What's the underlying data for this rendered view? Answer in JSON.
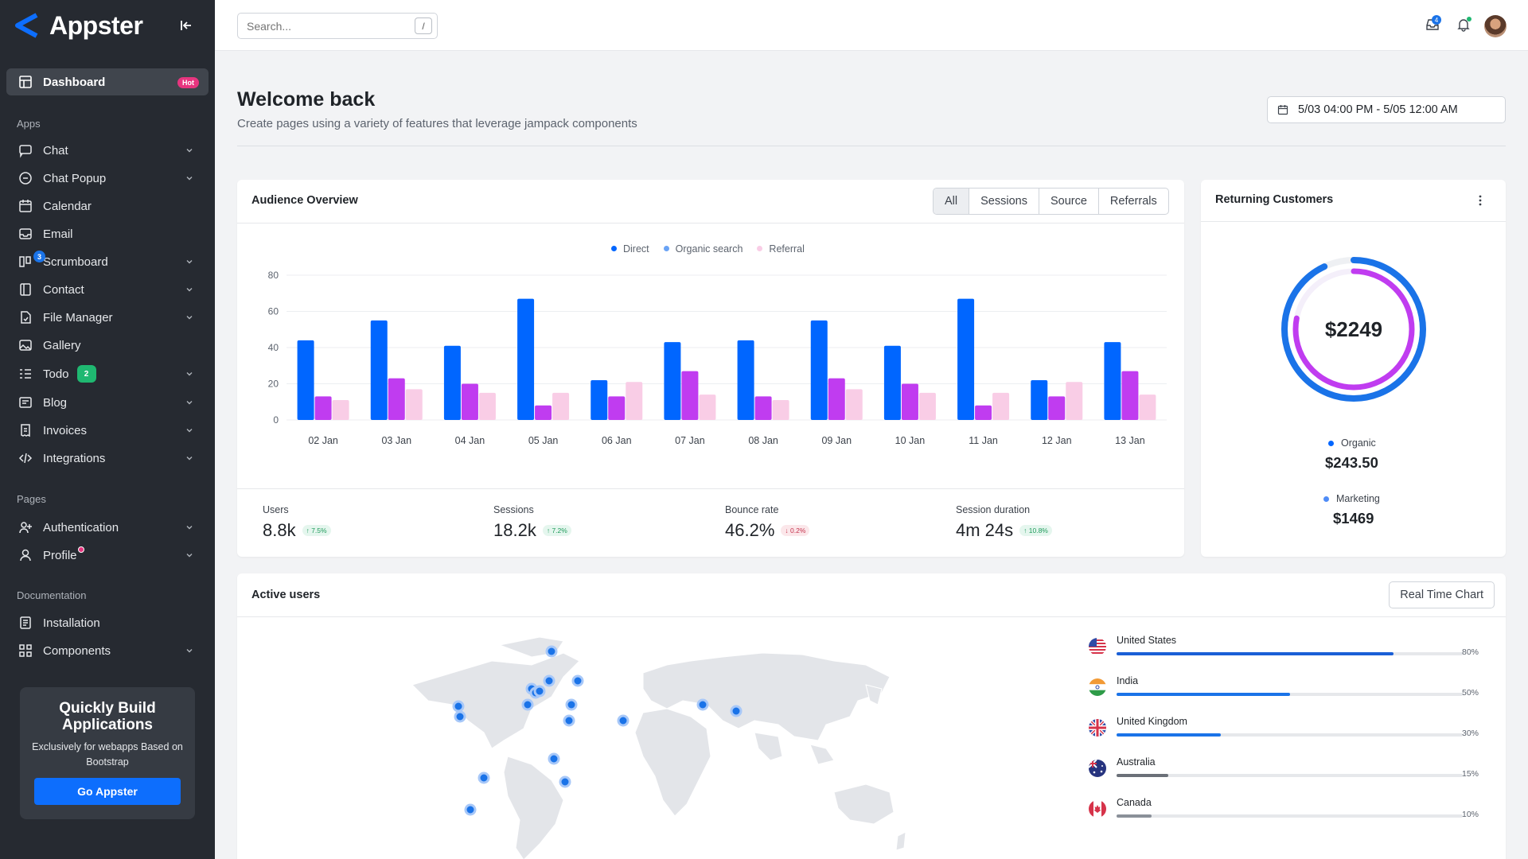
{
  "brand": {
    "name": "Appster"
  },
  "sidebar": {
    "dashboard": {
      "label": "Dashboard",
      "badge": "Hot"
    },
    "apps_title": "Apps",
    "apps": [
      {
        "label": "Chat",
        "icon": "chat-icon"
      },
      {
        "label": "Chat Popup",
        "icon": "chat-popup-icon"
      },
      {
        "label": "Calendar",
        "icon": "calendar-icon"
      },
      {
        "label": "Email",
        "icon": "email-icon"
      },
      {
        "label": "Scrumboard",
        "icon": "scrumboard-icon",
        "badge": "3"
      },
      {
        "label": "Contact",
        "icon": "contact-icon"
      },
      {
        "label": "File Manager",
        "icon": "file-manager-icon"
      },
      {
        "label": "Gallery",
        "icon": "gallery-icon"
      },
      {
        "label": "Todo",
        "icon": "todo-icon",
        "badge": "2"
      },
      {
        "label": "Blog",
        "icon": "blog-icon"
      },
      {
        "label": "Invoices",
        "icon": "invoices-icon"
      },
      {
        "label": "Integrations",
        "icon": "integrations-icon"
      }
    ],
    "pages_title": "Pages",
    "pages": [
      {
        "label": "Authentication",
        "icon": "authentication-icon"
      },
      {
        "label": "Profile",
        "icon": "profile-icon"
      }
    ],
    "docs_title": "Documentation",
    "docs": [
      {
        "label": "Installation",
        "icon": "installation-icon"
      },
      {
        "label": "Components",
        "icon": "components-icon"
      }
    ],
    "promo": {
      "title": "Quickly Build Applications",
      "text": "Exclusively for webapps Based on Bootstrap",
      "button": "Go Appster"
    }
  },
  "topbar": {
    "search_placeholder": "Search...",
    "search_shortcut": "/",
    "inbox_count": "4"
  },
  "header": {
    "title": "Welcome back",
    "subtitle": "Create pages using a variety of features that leverage jampack components",
    "date_range": "5/03 04:00 PM - 5/05 12:00 AM"
  },
  "audience": {
    "title": "Audience Overview",
    "tabs": [
      "All",
      "Sessions",
      "Source",
      "Referrals"
    ],
    "active_tab": "All",
    "stats": [
      {
        "label": "Users",
        "value": "8.8k",
        "change": "↑ 7.5%",
        "dir": "up"
      },
      {
        "label": "Sessions",
        "value": "18.2k",
        "change": "↑ 7.2%",
        "dir": "up"
      },
      {
        "label": "Bounce rate",
        "value": "46.2%",
        "change": "↓ 0.2%",
        "dir": "down"
      },
      {
        "label": "Session duration",
        "value": "4m 24s",
        "change": "↑ 10.8%",
        "dir": "up"
      }
    ]
  },
  "chart_data": {
    "type": "bar",
    "categories": [
      "02 Jan",
      "03 Jan",
      "04 Jan",
      "05 Jan",
      "06 Jan",
      "07 Jan",
      "08 Jan",
      "09 Jan",
      "10 Jan",
      "11 Jan",
      "12 Jan",
      "13 Jan"
    ],
    "series": [
      {
        "name": "Direct",
        "color": "#0066ff",
        "values": [
          44,
          55,
          41,
          67,
          22,
          43,
          44,
          55,
          41,
          67,
          22,
          43
        ]
      },
      {
        "name": "Organic search",
        "color": "#c03cf0",
        "values": [
          13,
          23,
          20,
          8,
          13,
          27,
          13,
          23,
          20,
          8,
          13,
          27
        ]
      },
      {
        "name": "Referral",
        "color": "#f9cde6",
        "values": [
          11,
          17,
          15,
          15,
          21,
          14,
          11,
          17,
          15,
          15,
          21,
          14
        ]
      }
    ],
    "yticks": [
      0,
      20,
      40,
      60,
      80
    ],
    "ylim": [
      0,
      80
    ],
    "grid": true,
    "legend": "top-center"
  },
  "returning": {
    "title": "Returning Customers",
    "total": "$2249",
    "items": [
      {
        "label": "Organic",
        "value": "$243.50",
        "color": "#0066ff"
      },
      {
        "label": "Marketing",
        "value": "$1469",
        "color": "#4f8cf7"
      }
    ],
    "ring_outer_fraction": 0.93,
    "ring_inner_fraction": 0.78
  },
  "active_users": {
    "title": "Active users",
    "button": "Real Time Chart",
    "countries": [
      {
        "name": "United States",
        "pct": "80%",
        "value": 0.8,
        "color": "#1a5fd6"
      },
      {
        "name": "India",
        "pct": "50%",
        "value": 0.5,
        "color": "#1a73e8"
      },
      {
        "name": "United Kingdom",
        "pct": "30%",
        "value": 0.3,
        "color": "#1a73e8"
      },
      {
        "name": "Australia",
        "pct": "15%",
        "value": 0.15,
        "color": "#6b7078"
      },
      {
        "name": "Canada",
        "pct": "10%",
        "value": 0.1,
        "color": "#8a9099"
      }
    ]
  }
}
